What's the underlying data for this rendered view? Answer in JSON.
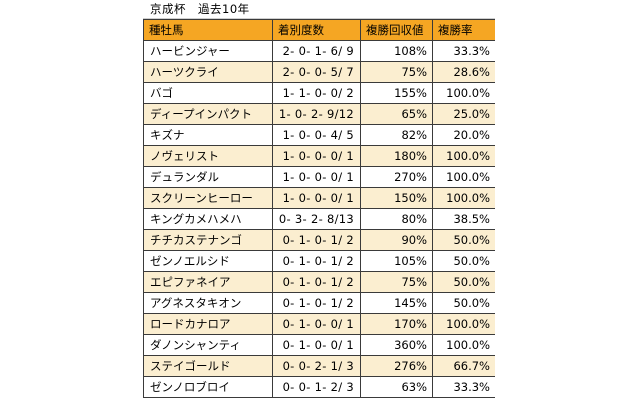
{
  "header": {
    "title": "京成杯　過去10年"
  },
  "table": {
    "columns": [
      "種牡馬",
      "着別度数",
      "複勝回収値",
      "複勝率"
    ],
    "rows": [
      [
        "ハービンジャー",
        "2- 0- 1- 6/ 9",
        "108%",
        "33.3%"
      ],
      [
        "ハーツクライ",
        "2- 0- 0- 5/ 7",
        "75%",
        "28.6%"
      ],
      [
        "バゴ",
        "1- 1- 0- 0/ 2",
        "155%",
        "100.0%"
      ],
      [
        "ディープインパクト",
        "1- 0- 2- 9/12",
        "65%",
        "25.0%"
      ],
      [
        "キズナ",
        "1- 0- 0- 4/ 5",
        "82%",
        "20.0%"
      ],
      [
        "ノヴェリスト",
        "1- 0- 0- 0/ 1",
        "180%",
        "100.0%"
      ],
      [
        "デュランダル",
        "1- 0- 0- 0/ 1",
        "270%",
        "100.0%"
      ],
      [
        "スクリーンヒーロー",
        "1- 0- 0- 0/ 1",
        "150%",
        "100.0%"
      ],
      [
        "キングカメハメハ",
        "0- 3- 2- 8/13",
        "80%",
        "38.5%"
      ],
      [
        "チチカステナンゴ",
        "0- 1- 0- 1/ 2",
        "90%",
        "50.0%"
      ],
      [
        "ゼンノエルシド",
        "0- 1- 0- 1/ 2",
        "105%",
        "50.0%"
      ],
      [
        "エピファネイア",
        "0- 1- 0- 1/ 2",
        "75%",
        "50.0%"
      ],
      [
        "アグネスタキオン",
        "0- 1- 0- 1/ 2",
        "145%",
        "50.0%"
      ],
      [
        "ロードカナロア",
        "0- 1- 0- 0/ 1",
        "170%",
        "100.0%"
      ],
      [
        "ダノンシャンティ",
        "0- 1- 0- 0/ 1",
        "360%",
        "100.0%"
      ],
      [
        "ステイゴールド",
        "0- 0- 2- 1/ 3",
        "276%",
        "66.7%"
      ],
      [
        "ゼンノロブロイ",
        "0- 0- 1- 2/ 3",
        "63%",
        "33.3%"
      ]
    ]
  },
  "colors": {
    "header_bg": "#f5a623",
    "stripe_bg": "#fbeed0",
    "border": "#3a3a3a"
  }
}
